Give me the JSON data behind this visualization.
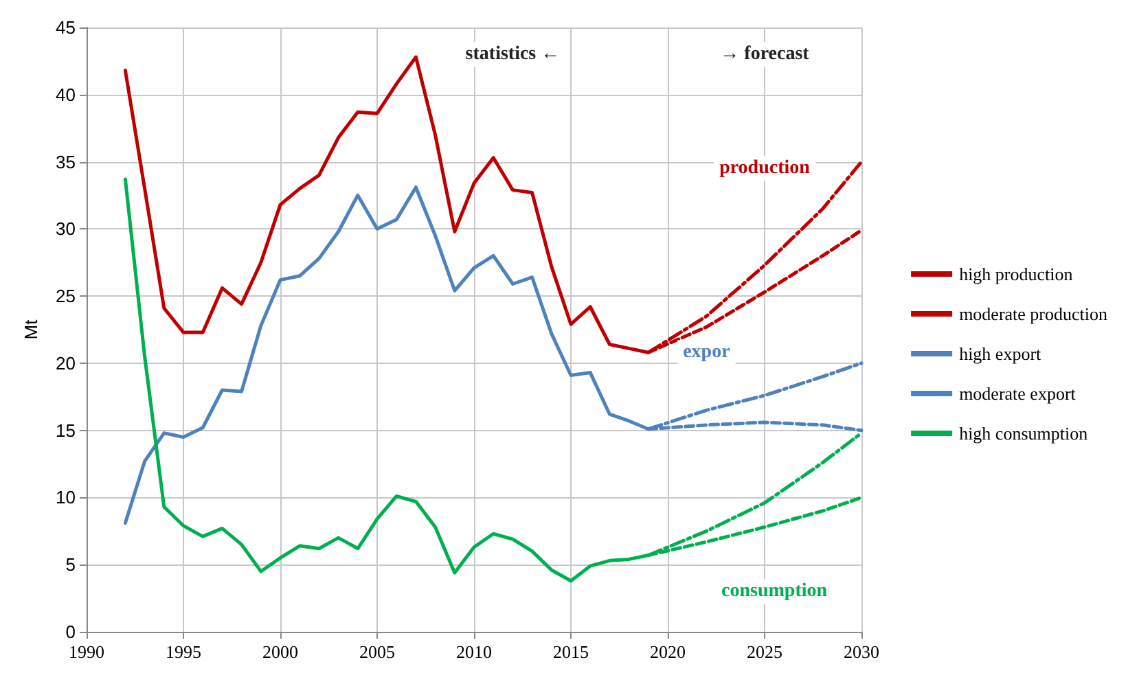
{
  "chart_data": {
    "type": "line",
    "ylabel": "Mt",
    "xlim": [
      1990,
      2030
    ],
    "xticks": [
      1990,
      1995,
      2000,
      2005,
      2010,
      2015,
      2020,
      2025,
      2030
    ],
    "ylim": [
      0,
      45
    ],
    "yticks": [
      0,
      5,
      10,
      15,
      20,
      25,
      30,
      35,
      40,
      45
    ],
    "grid": true,
    "legend": "right",
    "marker": "none",
    "series": [
      {
        "color": "#c00000",
        "line_style": "solid",
        "x": [
          1992,
          1993,
          1994,
          1995,
          1996,
          1997,
          1998,
          1999,
          2000,
          2001,
          2002,
          2003,
          2004,
          2005,
          2006,
          2007,
          2008,
          2009,
          2010,
          2011,
          2012,
          2013,
          2014,
          2015,
          2016,
          2017,
          2018,
          2019
        ],
        "values": [
          41.8,
          33,
          24.1,
          22.3,
          22.3,
          25.6,
          24.4,
          27.5,
          31.8,
          33,
          34,
          36.8,
          38.7,
          38.6,
          40.8,
          42.8,
          37,
          29.8,
          33.4,
          35.3,
          32.9,
          32.7,
          27.2,
          22.9,
          24.2,
          21.4,
          21.1,
          20.8
        ]
      },
      {
        "color": "#4f81bd",
        "line_style": "solid",
        "x": [
          1992,
          1993,
          1994,
          1995,
          1996,
          1997,
          1998,
          1999,
          2000,
          2001,
          2002,
          2003,
          2004,
          2005,
          2006,
          2007,
          2008,
          2009,
          2010,
          2011,
          2012,
          2013,
          2014,
          2015,
          2016,
          2017,
          2018,
          2019
        ],
        "values": [
          8.1,
          12.7,
          14.8,
          14.5,
          15.2,
          18,
          17.9,
          22.8,
          26.2,
          26.5,
          27.8,
          29.8,
          32.5,
          30,
          30.7,
          33.1,
          29.5,
          25.4,
          27.1,
          28,
          25.9,
          26.4,
          22.2,
          19.1,
          19.3,
          16.2,
          15.7,
          15.1
        ]
      },
      {
        "color": "#00b050",
        "line_style": "solid",
        "x": [
          1992,
          1993,
          1994,
          1995,
          1996,
          1997,
          1998,
          1999,
          2000,
          2001,
          2002,
          2003,
          2004,
          2005,
          2006,
          2007,
          2008,
          2009,
          2010,
          2011,
          2012,
          2013,
          2014,
          2015,
          2016,
          2017,
          2018,
          2019
        ],
        "values": [
          33.7,
          20.5,
          9.3,
          7.9,
          7.1,
          7.7,
          6.5,
          4.5,
          5.5,
          6.4,
          6.2,
          7,
          6.2,
          8.4,
          10.1,
          9.7,
          7.8,
          4.4,
          6.3,
          7.3,
          6.9,
          6,
          4.6,
          3.8,
          4.9,
          5.3,
          5.4,
          5.7
        ]
      },
      {
        "name": "high production",
        "color": "#c00000",
        "line_style": "dashdot",
        "x": [
          2019,
          2022,
          2025,
          2028,
          2030
        ],
        "values": [
          20.8,
          23.5,
          27.3,
          31.5,
          35
        ]
      },
      {
        "name": "moderate production",
        "color": "#c00000",
        "line_style": "dashed",
        "x": [
          2019,
          2022,
          2025,
          2028,
          2030
        ],
        "values": [
          20.8,
          22.7,
          25.3,
          28,
          29.9
        ]
      },
      {
        "name": "high export",
        "color": "#4f81bd",
        "line_style": "dashdot",
        "x": [
          2019,
          2022,
          2025,
          2028,
          2030
        ],
        "values": [
          15.1,
          16.5,
          17.6,
          19,
          20
        ]
      },
      {
        "name": "moderate export",
        "color": "#4f81bd",
        "line_style": "dashed",
        "x": [
          2019,
          2022,
          2025,
          2028,
          2030
        ],
        "values": [
          15.1,
          15.4,
          15.6,
          15.4,
          15
        ]
      },
      {
        "name": "high consumption",
        "color": "#00b050",
        "line_style": "dashdot",
        "x": [
          2019,
          2022,
          2025,
          2028,
          2030
        ],
        "values": [
          5.7,
          7.5,
          9.6,
          12.6,
          14.8
        ]
      },
      {
        "color": "#00b050",
        "line_style": "dashed",
        "x": [
          2019,
          2022,
          2025,
          2028,
          2030
        ],
        "values": [
          5.7,
          6.7,
          7.8,
          9,
          10
        ]
      }
    ],
    "annotations": [
      "statistics ←",
      "→ forecast",
      "production",
      "expor",
      "consumption"
    ]
  }
}
